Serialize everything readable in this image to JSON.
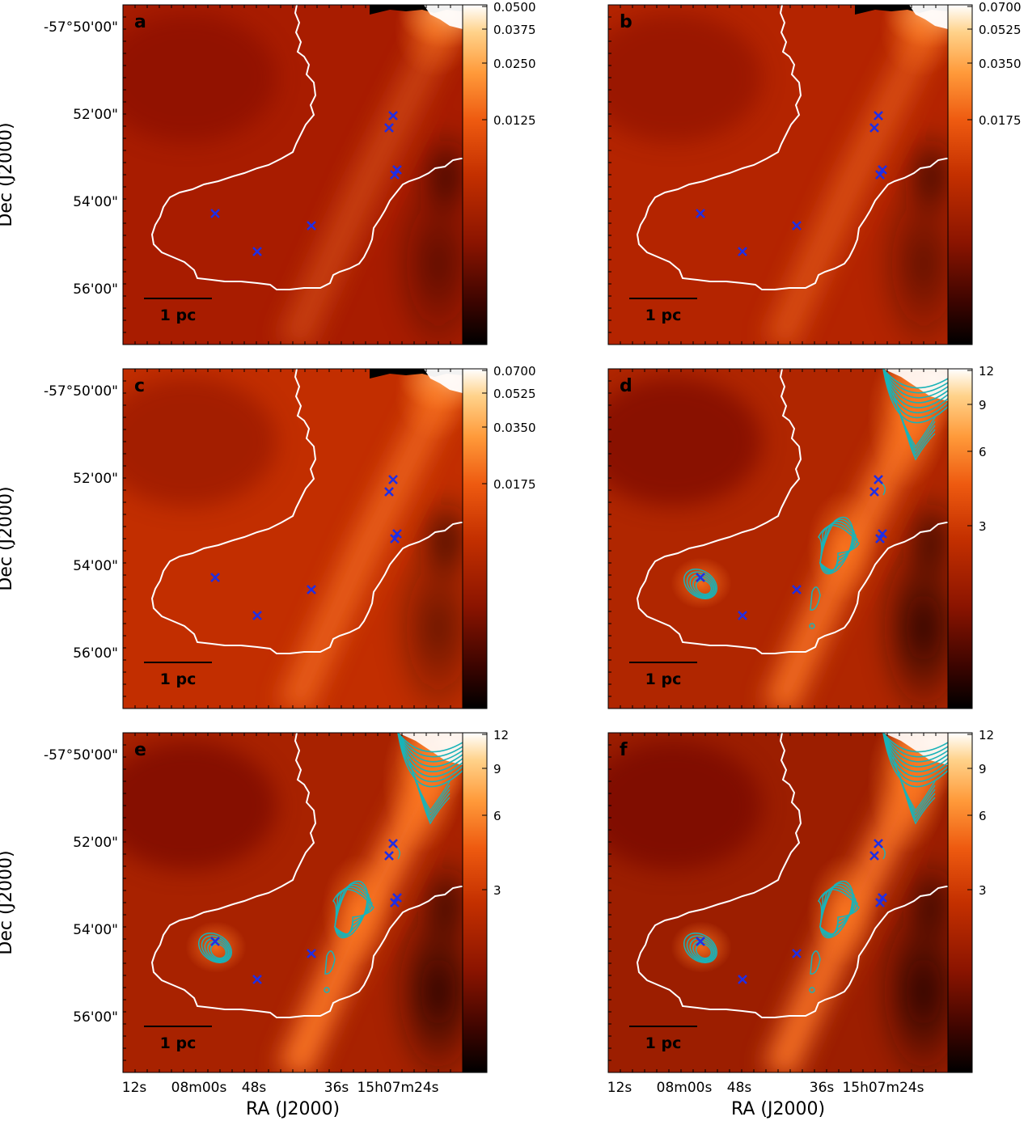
{
  "figure": {
    "x_axis_label": "RA (J2000)",
    "y_axis_label": "Dec (J2000)",
    "ra_ticks": [
      "12s",
      "08m00s",
      "48s",
      "36s",
      "15h07m24s"
    ],
    "dec_ticks": [
      "-57°50'00\"",
      "52'00\"",
      "54'00\"",
      "56'00\""
    ],
    "scale_bar_label": "1 pc",
    "colors": {
      "region_boundary": "#ffffff",
      "marker": "#1f2ee6",
      "contour": "#19b3b8",
      "colormap": [
        "#000000",
        "#4a0500",
        "#8b1400",
        "#c43000",
        "#ee5a10",
        "#ff9a3a",
        "#ffd28a",
        "#ffffff"
      ]
    }
  },
  "panels": [
    {
      "label": "a",
      "colorbar_ticks": [
        "0.0500",
        "0.0375",
        "0.0250",
        "0.0125"
      ],
      "contours": false
    },
    {
      "label": "b",
      "colorbar_ticks": [
        "0.0700",
        "0.0525",
        "0.0350",
        "0.0175"
      ],
      "contours": false
    },
    {
      "label": "c",
      "colorbar_ticks": [
        "0.0700",
        "0.0525",
        "0.0350",
        "0.0175"
      ],
      "contours": false
    },
    {
      "label": "d",
      "colorbar_ticks": [
        "12",
        "9",
        "6",
        "3"
      ],
      "contours": true
    },
    {
      "label": "e",
      "colorbar_ticks": [
        "12",
        "9",
        "6",
        "3"
      ],
      "contours": true
    },
    {
      "label": "f",
      "colorbar_ticks": [
        "12",
        "9",
        "6",
        "3"
      ],
      "contours": true
    }
  ]
}
